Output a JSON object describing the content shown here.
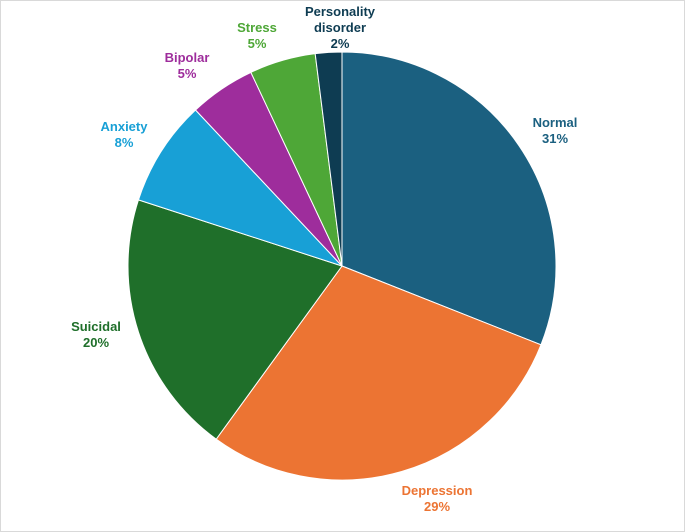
{
  "chart_data": {
    "type": "pie",
    "title": "",
    "slices": [
      {
        "name": "Normal",
        "value": 31,
        "pct_label": "31%",
        "color": "#1b6080"
      },
      {
        "name": "Depression",
        "value": 29,
        "pct_label": "29%",
        "color": "#ec7433"
      },
      {
        "name": "Suicidal",
        "value": 20,
        "pct_label": "20%",
        "color": "#1f6f2a"
      },
      {
        "name": "Anxiety",
        "value": 8,
        "pct_label": "8%",
        "color": "#18a0d6"
      },
      {
        "name": "Bipolar",
        "value": 5,
        "pct_label": "5%",
        "color": "#9e2d9c"
      },
      {
        "name": "Stress",
        "value": 5,
        "pct_label": "5%",
        "color": "#4ea737"
      },
      {
        "name": "Personality disorder",
        "value": 2,
        "pct_label": "2%",
        "color": "#0e3c52"
      }
    ]
  }
}
